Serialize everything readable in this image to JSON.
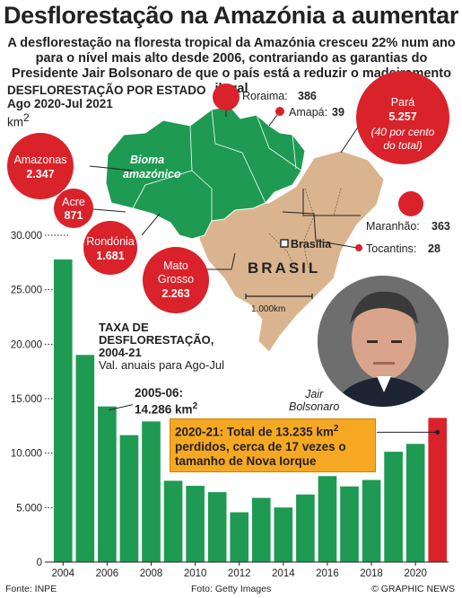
{
  "title": "Desflorestação na Amazónia a aumentar",
  "subtitle": "A desflorestação na floresta tropical da Amazónia cresceu 22% num ano para o nível mais alto desde 2006, contrariando as garantias do Presidente Jair Bolsonaro de que o país está a reduzir o madeiramento ilegal",
  "map": {
    "title_line1": "DESFLORESTAÇÃO POR ESTADO",
    "title_line2": "Ago 2020-Jul 2021",
    "unit": "km",
    "unit_sup": "2",
    "biome_label_1": "Bioma",
    "biome_label_2": "amazónico",
    "country_label": "BRASIL",
    "capital_label": "Brasília",
    "scale_label": "1.000km",
    "states": [
      {
        "name": "Roraima",
        "value": "386"
      },
      {
        "name": "Amapá",
        "value": "39"
      },
      {
        "name": "Pará",
        "value": "5.257",
        "note_1": "(40 por cento",
        "note_2": "do total)"
      },
      {
        "name": "Amazonas",
        "value": "2.347"
      },
      {
        "name": "Acre",
        "value": "871"
      },
      {
        "name": "Rondónia",
        "value": "1.681"
      },
      {
        "name": "Mato",
        "name_2": "Grosso",
        "value": "2.263"
      },
      {
        "name": "Maranhão",
        "value": "363"
      },
      {
        "name": "Tocantins",
        "value": "28"
      }
    ]
  },
  "annotations": {
    "taxa_line1": "TAXA DE",
    "taxa_line2": "DESFLORESTAÇÃO,",
    "taxa_line3": "2004-21",
    "taxa_line4": "Val. anuais  para Ago-Jul",
    "peak_line1": "2005-06:",
    "peak_line2": "14.286 km",
    "peak_sup": "2",
    "callout_a": "2020-21: Total de 13.235 km",
    "callout_sup": "2",
    "callout_b": "perdidos, cerca de 17 vezes o tamanho de Nova Iorque",
    "photo_caption_1": "Jair",
    "photo_caption_2": "Bolsonaro"
  },
  "colors": {
    "bar": "#1e9a53",
    "bar_highlight": "#d9222a",
    "amazon_biome": "#1e9a53",
    "brazil_land": "#d9b48f",
    "state_circle": "#d9222a",
    "callout_fill": "#f7a823"
  },
  "chart_data": {
    "type": "bar",
    "categories": [
      "2004",
      "2005",
      "2006",
      "2007",
      "2008",
      "2009",
      "2010",
      "2011",
      "2012",
      "2013",
      "2014",
      "2015",
      "2016",
      "2017",
      "2018",
      "2019",
      "2020",
      "2021"
    ],
    "values": [
      27772,
      19014,
      14286,
      11651,
      12911,
      7464,
      7000,
      6418,
      4571,
      5891,
      5012,
      6207,
      7893,
      6947,
      7536,
      10129,
      10851,
      13235
    ],
    "highlight_index": 17,
    "x_tick_labels": [
      "2004",
      "2006",
      "2008",
      "2010",
      "2012",
      "2014",
      "2016",
      "2018",
      "2020"
    ],
    "y_ticks": [
      0,
      5000,
      10000,
      15000,
      20000,
      25000,
      30000
    ],
    "y_tick_labels": [
      "0",
      "5.000",
      "10.000",
      "15.000",
      "20.000",
      "25.000",
      "30.000"
    ],
    "ylim": [
      0,
      30000
    ],
    "grid": false
  },
  "footer": {
    "source": "Fonte: INPE",
    "photo": "Foto: Getty Images",
    "credit": "© GRAPHIC NEWS"
  }
}
